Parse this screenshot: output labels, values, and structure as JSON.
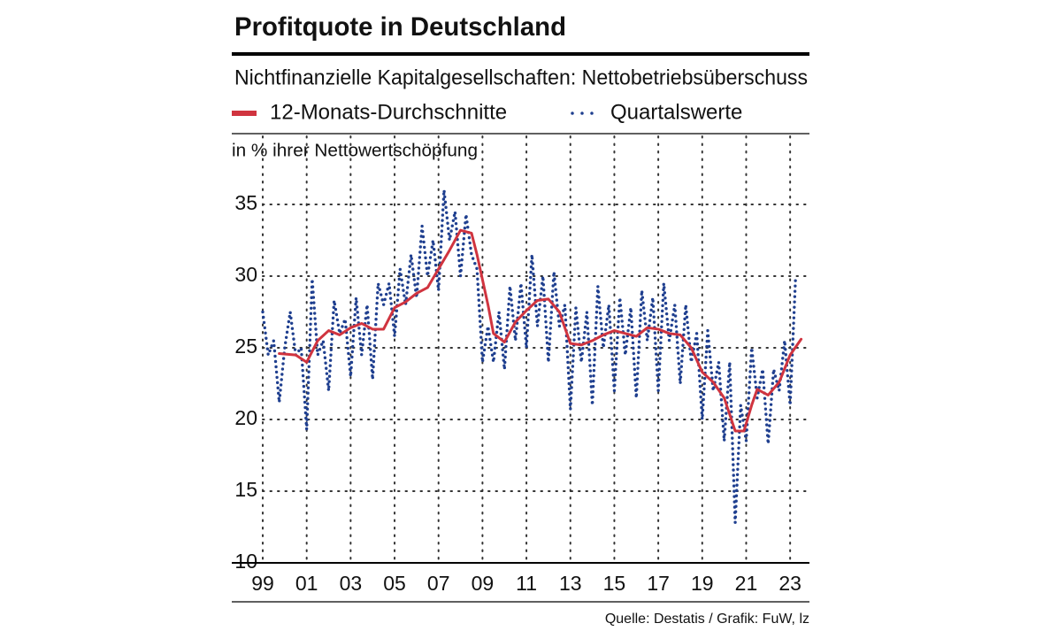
{
  "chart_data": {
    "type": "line",
    "title": "Profitquote  in Deutschland",
    "subtitle": "Nichtfinanzielle Kapitalgesellschaften: Nettobetriebsüberschuss",
    "y_label": "in % ihrer Nettowertschöpfung",
    "source": "Quelle: Destatis / Grafik: FuW, lz",
    "xlim": [
      1999,
      2024
    ],
    "ylim": [
      10,
      40
    ],
    "xticks": [
      {
        "value": 1999,
        "label": "99"
      },
      {
        "value": 2001,
        "label": "01"
      },
      {
        "value": 2003,
        "label": "03"
      },
      {
        "value": 2005,
        "label": "05"
      },
      {
        "value": 2007,
        "label": "07"
      },
      {
        "value": 2009,
        "label": "09"
      },
      {
        "value": 2011,
        "label": "11"
      },
      {
        "value": 2013,
        "label": "13"
      },
      {
        "value": 2015,
        "label": "15"
      },
      {
        "value": 2017,
        "label": "17"
      },
      {
        "value": 2019,
        "label": "19"
      },
      {
        "value": 2021,
        "label": "21"
      },
      {
        "value": 2023,
        "label": "23"
      }
    ],
    "yticks": [
      10,
      15,
      20,
      25,
      30,
      35
    ],
    "grid": true,
    "series": [
      {
        "name": "12-Monats-Durchschnitte",
        "color": "#d0343f",
        "style": "solid",
        "x": [
          1999.75,
          2000.5,
          2001.0,
          2001.5,
          2002.0,
          2002.5,
          2003.0,
          2003.5,
          2004.0,
          2004.5,
          2005.0,
          2005.5,
          2006.0,
          2006.5,
          2007.0,
          2007.5,
          2008.0,
          2008.5,
          2008.75,
          2009.25,
          2009.5,
          2010.0,
          2010.5,
          2011.0,
          2011.5,
          2012.0,
          2012.5,
          2013.0,
          2013.5,
          2014.0,
          2014.5,
          2015.0,
          2015.5,
          2016.0,
          2016.5,
          2017.0,
          2017.5,
          2018.0,
          2018.5,
          2019.0,
          2019.5,
          2020.0,
          2020.5,
          2020.9,
          2021.25,
          2021.5,
          2022.0,
          2022.5,
          2023.0,
          2023.5
        ],
        "values": [
          24.6,
          24.5,
          24.0,
          25.5,
          26.2,
          25.9,
          26.4,
          26.7,
          26.3,
          26.3,
          27.8,
          28.2,
          28.8,
          29.2,
          30.5,
          31.8,
          33.2,
          33.0,
          31.5,
          28.0,
          26.0,
          25.4,
          26.8,
          27.6,
          28.3,
          28.4,
          27.5,
          25.3,
          25.2,
          25.5,
          25.9,
          26.2,
          26.0,
          25.8,
          26.4,
          26.3,
          26.0,
          25.9,
          25.0,
          23.3,
          22.6,
          21.5,
          19.2,
          19.2,
          21.0,
          22.1,
          21.7,
          22.6,
          24.5,
          25.6
        ]
      },
      {
        "name": "Quartalswerte",
        "color": "#1f3f8f",
        "style": "dotted",
        "x": [
          1999.0,
          1999.25,
          1999.5,
          1999.75,
          2000.0,
          2000.25,
          2000.5,
          2000.75,
          2001.0,
          2001.25,
          2001.5,
          2001.75,
          2002.0,
          2002.25,
          2002.5,
          2002.75,
          2003.0,
          2003.25,
          2003.5,
          2003.75,
          2004.0,
          2004.25,
          2004.5,
          2004.75,
          2005.0,
          2005.25,
          2005.5,
          2005.75,
          2006.0,
          2006.25,
          2006.5,
          2006.75,
          2007.0,
          2007.25,
          2007.5,
          2007.75,
          2008.0,
          2008.25,
          2008.5,
          2008.75,
          2009.0,
          2009.25,
          2009.5,
          2009.75,
          2010.0,
          2010.25,
          2010.5,
          2010.75,
          2011.0,
          2011.25,
          2011.5,
          2011.75,
          2012.0,
          2012.25,
          2012.5,
          2012.75,
          2013.0,
          2013.25,
          2013.5,
          2013.75,
          2014.0,
          2014.25,
          2014.5,
          2014.75,
          2015.0,
          2015.25,
          2015.5,
          2015.75,
          2016.0,
          2016.25,
          2016.5,
          2016.75,
          2017.0,
          2017.25,
          2017.5,
          2017.75,
          2018.0,
          2018.25,
          2018.5,
          2018.75,
          2019.0,
          2019.25,
          2019.5,
          2019.75,
          2020.0,
          2020.25,
          2020.5,
          2020.75,
          2021.0,
          2021.25,
          2021.5,
          2021.75,
          2022.0,
          2022.25,
          2022.5,
          2022.75,
          2023.0,
          2023.25
        ],
        "values": [
          27.5,
          24.5,
          25.5,
          21.2,
          25.0,
          27.5,
          24.5,
          25.0,
          19.3,
          29.8,
          24.5,
          25.5,
          22.0,
          28.3,
          26.0,
          27.0,
          23.0,
          28.5,
          24.5,
          28.0,
          22.8,
          29.5,
          28.0,
          29.5,
          25.8,
          30.5,
          28.0,
          31.5,
          28.5,
          33.5,
          30.0,
          32.5,
          29.0,
          36.0,
          32.5,
          34.5,
          30.0,
          34.3,
          31.5,
          30.5,
          24.0,
          26.5,
          24.0,
          27.5,
          23.5,
          29.3,
          25.5,
          29.5,
          25.0,
          31.5,
          26.5,
          30.0,
          24.0,
          30.3,
          26.5,
          28.0,
          20.7,
          27.8,
          24.0,
          27.5,
          21.0,
          29.3,
          25.0,
          28.0,
          22.0,
          28.5,
          24.5,
          27.8,
          21.5,
          29.0,
          25.5,
          28.5,
          22.0,
          29.5,
          25.5,
          28.0,
          22.5,
          28.0,
          24.0,
          26.0,
          20.0,
          26.2,
          22.0,
          24.0,
          18.5,
          24.0,
          12.8,
          21.0,
          18.5,
          25.0,
          21.5,
          23.5,
          18.3,
          23.5,
          22.0,
          25.5,
          21.0,
          30.0
        ]
      }
    ]
  }
}
